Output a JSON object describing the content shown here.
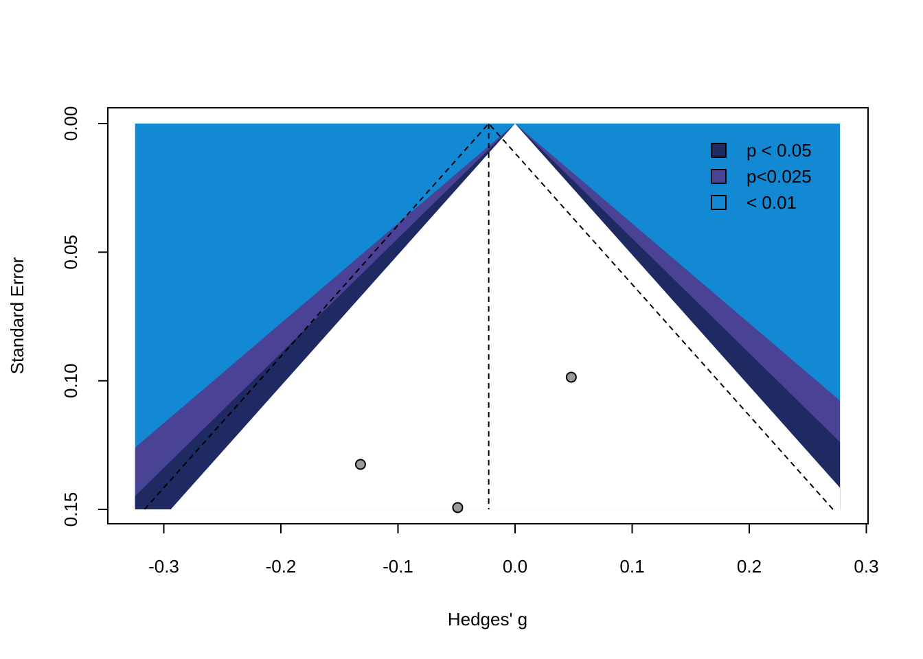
{
  "chart_data": {
    "type": "scatter",
    "subtype": "contour-enhanced funnel plot",
    "title": "",
    "xlabel": "Hedges' g",
    "ylabel": "Standard Error",
    "xlim": [
      -0.35,
      0.3
    ],
    "ylim": [
      0.155,
      -0.006
    ],
    "x_ticks": [
      "-0.3",
      "-0.2",
      "-0.1",
      "0.0",
      "0.1",
      "0.2",
      "0.3"
    ],
    "y_ticks": [
      "0.00",
      "0.05",
      "0.10",
      "0.15"
    ],
    "y_reversed": true,
    "grid": false,
    "legend_position": "top-right",
    "legend": [
      {
        "label": "p < 0.05",
        "color": "#1f2a63"
      },
      {
        "label": "p<0.025",
        "color": "#4a4294"
      },
      {
        "label": "< 0.01",
        "color": "#1388d3"
      }
    ],
    "colors": {
      "p_lt_005": "#1f2a63",
      "p_lt_0025": "#4a4294",
      "p_lt_001": "#1388d3",
      "background": "#ffffff",
      "point_fill": "#999999"
    },
    "contour_center": 0.0,
    "contour_x_range": [
      -0.3245,
      0.2775
    ],
    "se_max": 0.15,
    "z_values": {
      "p_lt_005": 1.96,
      "p_lt_0025": 2.241,
      "p_lt_001": 2.576
    },
    "pooled_estimate": -0.0225,
    "points": [
      {
        "x": 0.048,
        "y": 0.0986
      },
      {
        "x": -0.132,
        "y": 0.1325
      },
      {
        "x": -0.049,
        "y": 0.1493
      }
    ]
  }
}
